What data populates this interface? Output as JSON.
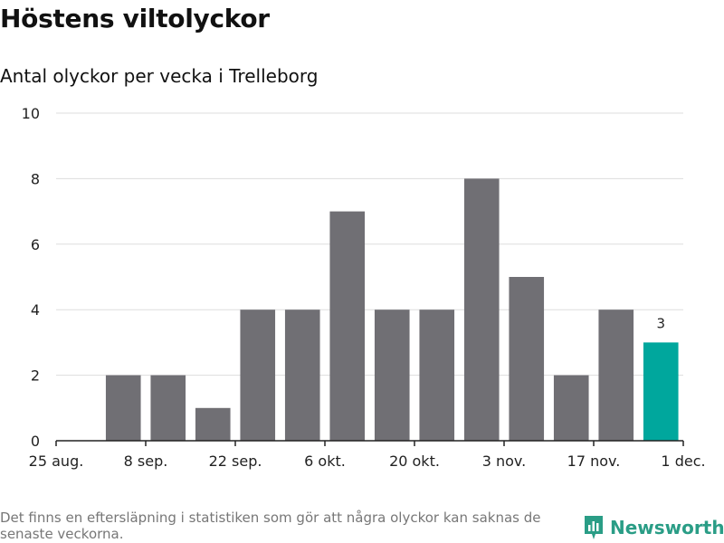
{
  "title": "Höstens viltolyckor",
  "subtitle": "Antal olyckor per vecka i Trelleborg",
  "footnote": "Det finns en eftersläpning i statistiken som gör att några olyckor kan saknas de senaste veckorna.",
  "brand": "Newsworthy",
  "colors": {
    "bar": "#706f74",
    "highlight": "#00a79d",
    "grid": "#dddddd",
    "axis": "#222222",
    "brand": "#2a9d86"
  },
  "chart_data": {
    "type": "bar",
    "title": "Höstens viltolyckor",
    "subtitle": "Antal olyckor per vecka i Trelleborg",
    "xlabel": "",
    "ylabel": "",
    "ylim": [
      0,
      10
    ],
    "yticks": [
      0,
      2,
      4,
      6,
      8,
      10
    ],
    "x_tick_labels": [
      "25 aug.",
      "8 sep.",
      "22 sep.",
      "6 okt.",
      "20 okt.",
      "3 nov.",
      "17 nov.",
      "1 dec."
    ],
    "values": [
      2,
      2,
      1,
      4,
      4,
      7,
      4,
      4,
      8,
      5,
      2,
      4,
      3
    ],
    "highlight_index": 12,
    "highlight_label": "3"
  }
}
